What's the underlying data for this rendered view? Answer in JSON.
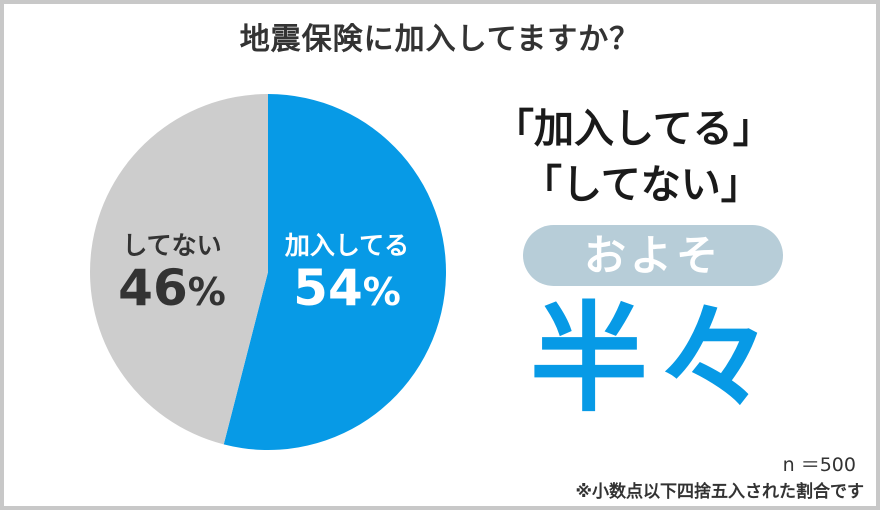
{
  "title": "地震保険に加入してますか？",
  "chart_data": {
    "type": "pie",
    "title": "地震保険に加入してますか？",
    "slices": [
      {
        "label": "加入してる",
        "value": 54,
        "color": "#079ae6"
      },
      {
        "label": "してない",
        "value": 46,
        "color": "#cdcdcd"
      }
    ],
    "unit": "%"
  },
  "labels": {
    "left_cat": "してない",
    "left_val": "46",
    "right_cat": "加入してる",
    "right_val": "54",
    "pct": "%"
  },
  "callout": {
    "line1": "「加入してる」",
    "line2": "「してない」",
    "pill": "およそ",
    "big": "半々"
  },
  "footer": {
    "n": "n ＝500",
    "note": "※小数点以下四捨五入された割合です"
  }
}
